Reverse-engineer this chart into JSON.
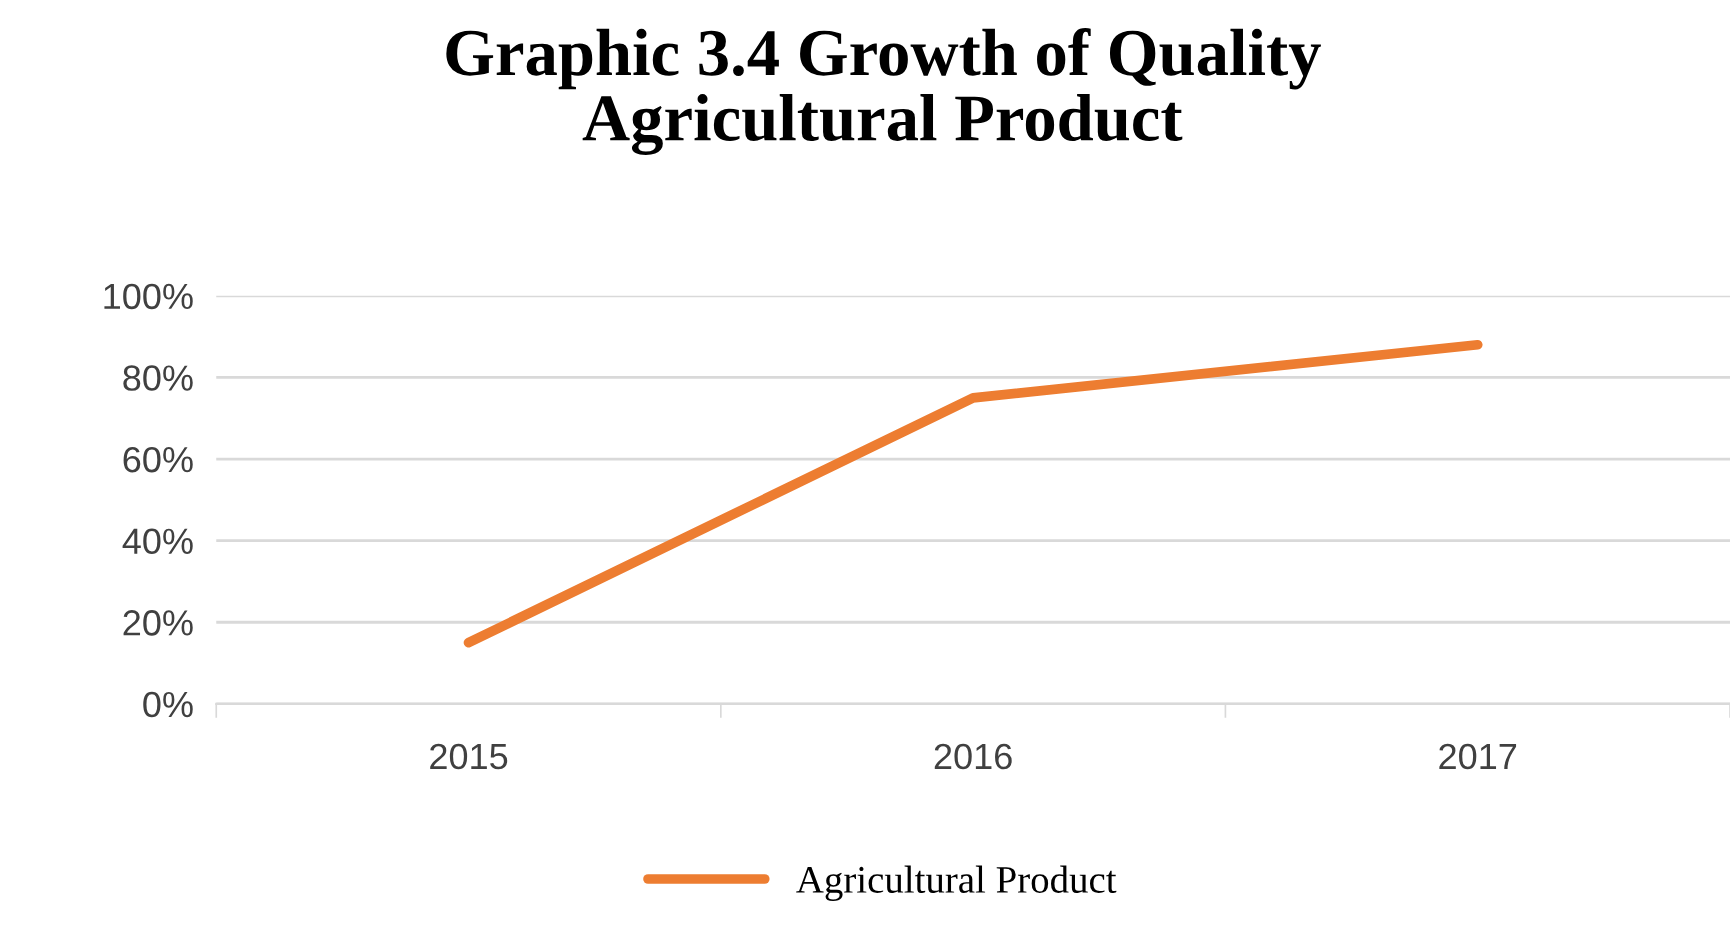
{
  "chart_data": {
    "type": "line",
    "title": "Graphic 3.4 Growth of Quality\nAgricultural Product",
    "categories": [
      "2015",
      "2016",
      "2017"
    ],
    "series": [
      {
        "name": "Agricultural Product",
        "color": "#ed7d31",
        "values": [
          15,
          75,
          88
        ]
      }
    ],
    "ylim": [
      0,
      100
    ],
    "yticks": [
      {
        "value": 0,
        "label": "0%"
      },
      {
        "value": 20,
        "label": "20%"
      },
      {
        "value": 40,
        "label": "40%"
      },
      {
        "value": 60,
        "label": "60%"
      },
      {
        "value": 80,
        "label": "80%"
      },
      {
        "value": 100,
        "label": "100%"
      }
    ],
    "grid": "y",
    "legend": "bottom",
    "marker": "none",
    "line_style": "solid"
  }
}
